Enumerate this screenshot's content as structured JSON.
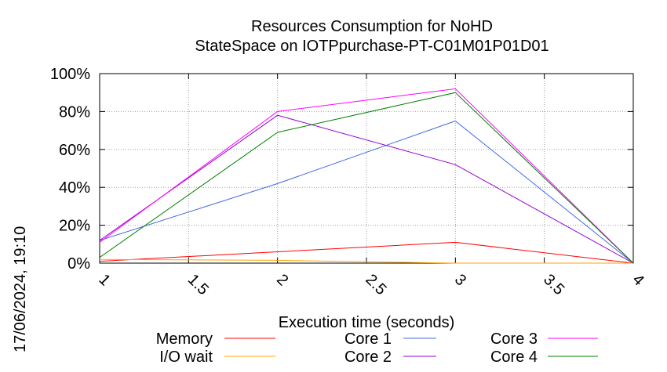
{
  "chart_data": {
    "type": "line",
    "title": "Resources Consumption for NoHD",
    "subtitle": "StateSpace on IOTPpurchase-PT-C01M01P01D01",
    "xlabel": "Execution time (seconds)",
    "ylabel": "",
    "timestamp": "17/06/2024, 19:10",
    "xlim": [
      1,
      4
    ],
    "ylim": [
      0,
      100
    ],
    "x_ticks": [
      1,
      1.5,
      2,
      2.5,
      3,
      3.5,
      4
    ],
    "x_tick_labels": [
      "1",
      "1.5",
      "2",
      "2.5",
      "3",
      "3.5",
      "4"
    ],
    "y_ticks": [
      0,
      20,
      40,
      60,
      80,
      100
    ],
    "y_tick_labels": [
      "0%",
      "20%",
      "40%",
      "60%",
      "80%",
      "100%"
    ],
    "grid": true,
    "legend_position": "bottom",
    "series": [
      {
        "name": "Memory",
        "color": "#ff0000",
        "x": [
          1,
          2,
          3,
          4
        ],
        "values": [
          1,
          6,
          11,
          0
        ]
      },
      {
        "name": "I/O wait",
        "color": "#ffa500",
        "x": [
          1,
          2,
          3,
          4
        ],
        "values": [
          2,
          1.5,
          0,
          0
        ]
      },
      {
        "name": "Core 1",
        "color": "#4169e1",
        "x": [
          1,
          2,
          3,
          4
        ],
        "values": [
          12,
          42,
          75,
          0
        ]
      },
      {
        "name": "Core 2",
        "color": "#9400d3",
        "x": [
          1,
          2,
          3,
          4
        ],
        "values": [
          12,
          78,
          52,
          0
        ]
      },
      {
        "name": "Core 3",
        "color": "#ff00ff",
        "x": [
          1,
          2,
          3,
          4
        ],
        "values": [
          11,
          80,
          92,
          0
        ]
      },
      {
        "name": "Core 4",
        "color": "#008000",
        "x": [
          1,
          2,
          3,
          4
        ],
        "values": [
          3,
          69,
          90,
          0
        ]
      }
    ]
  }
}
